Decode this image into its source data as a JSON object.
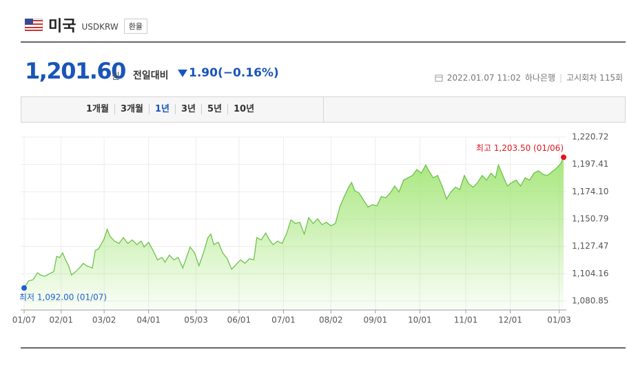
{
  "header": {
    "title": "미국",
    "code": "USDKRW",
    "button": "환율"
  },
  "quote": {
    "price": "1,201.60",
    "unit": "원",
    "change_label": "전일대비",
    "change": "1.90(−0.16%)",
    "date": "2022.01.07 11:02",
    "bank": "하나은행",
    "round": "고시회차 115회"
  },
  "tabs": {
    "items": [
      "1개월",
      "3개월",
      "1년",
      "3년",
      "5년",
      "10년"
    ],
    "selected": 2
  },
  "chart_data": {
    "type": "area",
    "color": "#6cc24a",
    "grid": true,
    "x": [
      0,
      3,
      6,
      9,
      11,
      14,
      17,
      20,
      22,
      24,
      26,
      28,
      30,
      32,
      34,
      38,
      40,
      42,
      46,
      48,
      50,
      54,
      56,
      58,
      61,
      64,
      67,
      70,
      73,
      76,
      79,
      81,
      84,
      87,
      90,
      93,
      95,
      98,
      101,
      104,
      107,
      109,
      112,
      115,
      118,
      121,
      124,
      126,
      128,
      131,
      134,
      137,
      140,
      143,
      146,
      149,
      152,
      155,
      157,
      160,
      163,
      166,
      168,
      171,
      174,
      177,
      180,
      183,
      186,
      189,
      192,
      195,
      198,
      201,
      204,
      207,
      210,
      213,
      216,
      219,
      221,
      223,
      226,
      229,
      232,
      235,
      238,
      241,
      244,
      247,
      250,
      253,
      256,
      259,
      262,
      265,
      268,
      271,
      273,
      276,
      279,
      282,
      285,
      288,
      291,
      294,
      297,
      300,
      303,
      306,
      309,
      312,
      315,
      318,
      320,
      323,
      326,
      329,
      332,
      335,
      338,
      341,
      344,
      347,
      350,
      353,
      356,
      359,
      362,
      364
    ],
    "values": [
      1092.0,
      1098,
      1099,
      1105,
      1103,
      1102,
      1104,
      1106,
      1119,
      1118,
      1122,
      1116,
      1111,
      1103,
      1105,
      1110,
      1113,
      1111,
      1109,
      1124,
      1125,
      1134,
      1142,
      1136,
      1132,
      1130,
      1135,
      1130,
      1133,
      1129,
      1132,
      1127,
      1131,
      1124,
      1116,
      1118,
      1114,
      1120,
      1116,
      1118,
      1109,
      1116,
      1127,
      1122,
      1111,
      1122,
      1135,
      1138,
      1129,
      1131,
      1122,
      1117,
      1108,
      1112,
      1116,
      1113,
      1117,
      1116,
      1135,
      1133,
      1139,
      1132,
      1129,
      1132,
      1130,
      1138,
      1150,
      1147,
      1148,
      1138,
      1152,
      1147,
      1151,
      1146,
      1148,
      1145,
      1147,
      1161,
      1170,
      1178,
      1182,
      1175,
      1173,
      1167,
      1161,
      1163,
      1162,
      1170,
      1169,
      1173,
      1179,
      1174,
      1184,
      1186,
      1188,
      1193,
      1190,
      1197,
      1192,
      1186,
      1188,
      1179,
      1168,
      1174,
      1178,
      1176,
      1188,
      1181,
      1178,
      1182,
      1188,
      1184,
      1190,
      1186,
      1197,
      1188,
      1179,
      1182,
      1184,
      1179,
      1186,
      1184,
      1190,
      1192,
      1189,
      1188,
      1191,
      1194,
      1198,
      1203.5
    ],
    "xlim": [
      0,
      364
    ],
    "xticks": [
      {
        "value": 0,
        "label": "01/07"
      },
      {
        "value": 25,
        "label": "02/01"
      },
      {
        "value": 54,
        "label": "03/02"
      },
      {
        "value": 84,
        "label": "04/01"
      },
      {
        "value": 116,
        "label": "05/03"
      },
      {
        "value": 145,
        "label": "06/01"
      },
      {
        "value": 175,
        "label": "07/01"
      },
      {
        "value": 207,
        "label": "08/02"
      },
      {
        "value": 237,
        "label": "09/01"
      },
      {
        "value": 267,
        "label": "10/01"
      },
      {
        "value": 298,
        "label": "11/01"
      },
      {
        "value": 328,
        "label": "12/01"
      },
      {
        "value": 361,
        "label": "01/03"
      }
    ],
    "ylim": [
      1080.85,
      1220.72
    ],
    "yticks": [
      {
        "value": 1080.85,
        "label": "1,080.85"
      },
      {
        "value": 1104.16,
        "label": "1,104.16"
      },
      {
        "value": 1127.47,
        "label": "1,127.47"
      },
      {
        "value": 1150.79,
        "label": "1,150.79"
      },
      {
        "value": 1174.1,
        "label": "1,174.10"
      },
      {
        "value": 1197.41,
        "label": "1,197.41"
      },
      {
        "value": 1220.72,
        "label": "1,220.72"
      }
    ],
    "annotations": [
      {
        "text": "최고 1,203.50 (01/06)",
        "x": 364,
        "value": 1203.5,
        "color": "#e0161e"
      },
      {
        "text": "최저 1,092.00 (01/07)",
        "x": 0,
        "value": 1092.0,
        "color": "#1d5fd0"
      }
    ]
  }
}
